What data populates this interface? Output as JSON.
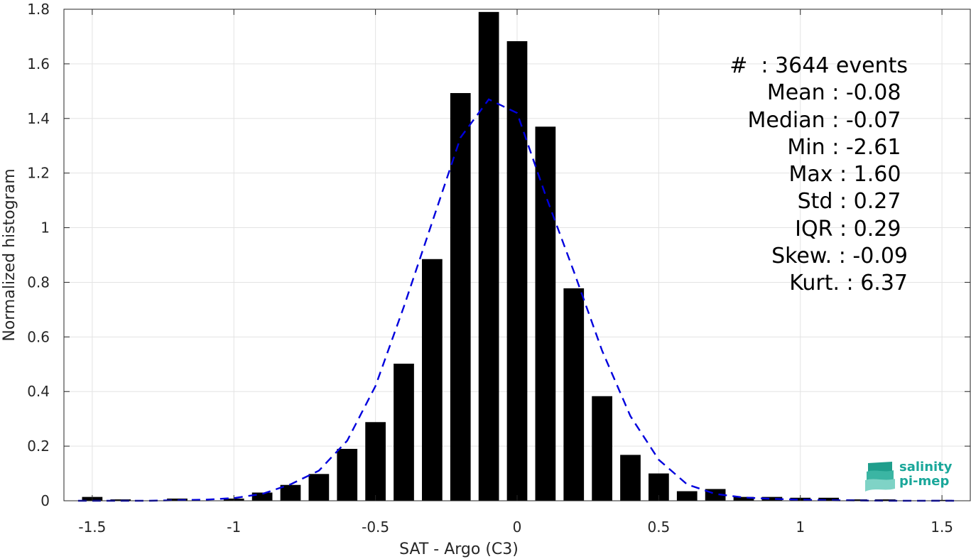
{
  "chart_data": {
    "type": "bar",
    "xlabel": "SAT - Argo (C3)",
    "ylabel": "Normalized histogram",
    "xlim": [
      -1.6,
      1.6
    ],
    "ylim": [
      0,
      1.8
    ],
    "xticks": [
      -1.5,
      -1,
      -0.5,
      0,
      0.5,
      1,
      1.5
    ],
    "xtick_labels": [
      "-1.5",
      "-1",
      "-0.5",
      "0",
      "0.5",
      "1",
      "1.5"
    ],
    "yticks": [
      0,
      0.2,
      0.4,
      0.6,
      0.8,
      1,
      1.2,
      1.4,
      1.6,
      1.8
    ],
    "ytick_labels": [
      "0",
      "0.2",
      "0.4",
      "0.6",
      "0.8",
      "1",
      "1.2",
      "1.4",
      "1.6",
      "1.8"
    ],
    "grid": true,
    "bar_color": "#000000",
    "fit_color": "#0000dd",
    "bins": {
      "x": [
        -1.5,
        -1.4,
        -1.3,
        -1.2,
        -1.1,
        -1.0,
        -0.9,
        -0.8,
        -0.7,
        -0.6,
        -0.5,
        -0.4,
        -0.3,
        -0.2,
        -0.1,
        0.0,
        0.1,
        0.2,
        0.3,
        0.4,
        0.5,
        0.6,
        0.7,
        0.8,
        0.9,
        1.0,
        1.1,
        1.2,
        1.3,
        1.4,
        1.5
      ],
      "values": [
        0.014,
        0.005,
        0.0,
        0.008,
        0.0,
        0.008,
        0.03,
        0.058,
        0.098,
        0.19,
        0.288,
        0.502,
        0.885,
        1.493,
        1.79,
        1.683,
        1.37,
        0.778,
        0.383,
        0.168,
        0.1,
        0.035,
        0.043,
        0.014,
        0.014,
        0.011,
        0.011,
        0.005,
        0.005,
        0.0,
        0.003
      ]
    },
    "fit": {
      "style": "dashed",
      "x": [
        -1.55,
        -1.4,
        -1.3,
        -1.2,
        -1.1,
        -1.0,
        -0.9,
        -0.8,
        -0.7,
        -0.6,
        -0.5,
        -0.4,
        -0.3,
        -0.2,
        -0.1,
        0.0,
        0.1,
        0.2,
        0.3,
        0.4,
        0.5,
        0.6,
        0.7,
        0.8,
        0.9,
        1.0,
        1.1,
        1.2,
        1.3,
        1.4,
        1.55
      ],
      "y": [
        0.0,
        0.0,
        0.0,
        0.002,
        0.004,
        0.01,
        0.025,
        0.06,
        0.11,
        0.22,
        0.42,
        0.71,
        1.02,
        1.33,
        1.47,
        1.42,
        1.12,
        0.84,
        0.55,
        0.31,
        0.15,
        0.06,
        0.025,
        0.012,
        0.007,
        0.004,
        0.002,
        0.001,
        0.0,
        0.0,
        0.0
      ]
    }
  },
  "stats": [
    "#  : 3644 events",
    "Mean : -0.08 ",
    "Median : -0.07 ",
    "Min : -2.61 ",
    "Max : 1.60 ",
    "Std : 0.27 ",
    "IQR : 0.29 ",
    "Skew. : -0.09",
    "Kurt. : 6.37"
  ],
  "logo": {
    "line1": "salinity",
    "line2": "pi-mep",
    "color": "#1aa79a"
  }
}
